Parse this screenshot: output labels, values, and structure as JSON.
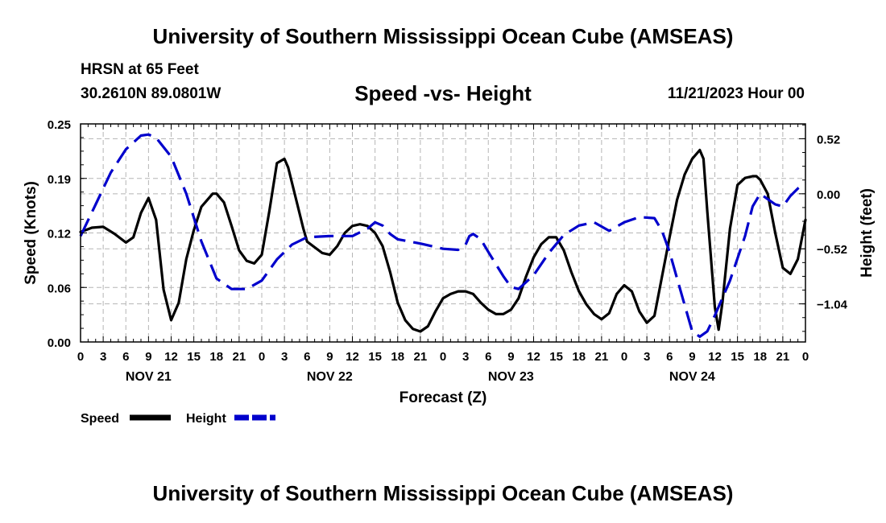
{
  "header": {
    "title": "University of Southern Mississippi Ocean Cube (AMSEAS)",
    "station": "HRSN at 65 Feet",
    "coords": "30.2610N  89.0801W",
    "run_time": "11/21/2023 Hour 00",
    "footer_title": "University of Southern Mississippi Ocean Cube (AMSEAS)"
  },
  "chart_data": {
    "type": "line",
    "title": "Speed -vs- Height",
    "xlabel": "Forecast (Z)",
    "ylabel": "Speed (Knots)",
    "y2label": "Height (feet)",
    "grid": true,
    "x_range_hours": [
      0,
      96
    ],
    "ylim": [
      0,
      0.25
    ],
    "y2lim": [
      -1.4,
      0.66
    ],
    "x_tick_labels": [
      "0",
      "3",
      "6",
      "9",
      "12",
      "15",
      "18",
      "21",
      "0",
      "3",
      "6",
      "9",
      "12",
      "15",
      "18",
      "21",
      "0",
      "3",
      "6",
      "9",
      "12",
      "15",
      "18",
      "21",
      "0",
      "3",
      "6",
      "9",
      "12",
      "15",
      "18",
      "21",
      "0"
    ],
    "day_labels": [
      {
        "label": "NOV 21",
        "hour": 9
      },
      {
        "label": "NOV 22",
        "hour": 33
      },
      {
        "label": "NOV 23",
        "hour": 57
      },
      {
        "label": "NOV 24",
        "hour": 81
      }
    ],
    "y_ticks": [
      "0.00",
      "0.06",
      "0.12",
      "0.19",
      "0.25"
    ],
    "y_tick_values": [
      0,
      0.0625,
      0.125,
      0.1875,
      0.25
    ],
    "y2_ticks": [
      "0.52",
      "0.00",
      "−0.52",
      "−1.04"
    ],
    "y2_tick_values": [
      0.52,
      0.0,
      -0.52,
      -1.04
    ],
    "legend": {
      "position": "bottom-left",
      "entries": [
        "Speed",
        "Height"
      ]
    },
    "series": [
      {
        "name": "Speed",
        "axis": "left",
        "color": "#000000",
        "style": "solid",
        "points": [
          [
            0,
            0.126
          ],
          [
            1.5,
            0.131
          ],
          [
            3,
            0.132
          ],
          [
            4.5,
            0.124
          ],
          [
            6,
            0.114
          ],
          [
            7,
            0.12
          ],
          [
            8,
            0.148
          ],
          [
            9,
            0.165
          ],
          [
            10,
            0.14
          ],
          [
            11,
            0.06
          ],
          [
            12,
            0.025
          ],
          [
            13,
            0.045
          ],
          [
            14,
            0.095
          ],
          [
            15,
            0.128
          ],
          [
            16,
            0.155
          ],
          [
            17.5,
            0.17
          ],
          [
            18,
            0.17
          ],
          [
            19,
            0.16
          ],
          [
            20,
            0.133
          ],
          [
            21,
            0.105
          ],
          [
            22,
            0.093
          ],
          [
            23,
            0.09
          ],
          [
            24,
            0.1
          ],
          [
            25,
            0.15
          ],
          [
            26,
            0.205
          ],
          [
            27,
            0.21
          ],
          [
            27.5,
            0.2
          ],
          [
            28.5,
            0.165
          ],
          [
            29.5,
            0.13
          ],
          [
            30,
            0.115
          ],
          [
            32,
            0.102
          ],
          [
            33,
            0.1
          ],
          [
            34,
            0.11
          ],
          [
            35,
            0.125
          ],
          [
            36,
            0.133
          ],
          [
            37,
            0.135
          ],
          [
            38,
            0.133
          ],
          [
            39,
            0.125
          ],
          [
            40,
            0.11
          ],
          [
            41,
            0.08
          ],
          [
            42,
            0.045
          ],
          [
            43,
            0.025
          ],
          [
            44,
            0.015
          ],
          [
            45,
            0.012
          ],
          [
            46,
            0.018
          ],
          [
            47,
            0.035
          ],
          [
            48,
            0.05
          ],
          [
            49,
            0.055
          ],
          [
            50,
            0.058
          ],
          [
            51,
            0.058
          ],
          [
            52,
            0.055
          ],
          [
            53,
            0.045
          ],
          [
            54,
            0.037
          ],
          [
            55,
            0.032
          ],
          [
            56,
            0.032
          ],
          [
            57,
            0.037
          ],
          [
            58,
            0.05
          ],
          [
            59,
            0.075
          ],
          [
            60,
            0.097
          ],
          [
            61,
            0.112
          ],
          [
            62,
            0.12
          ],
          [
            63,
            0.12
          ],
          [
            64,
            0.105
          ],
          [
            65,
            0.08
          ],
          [
            66,
            0.058
          ],
          [
            67,
            0.043
          ],
          [
            68,
            0.032
          ],
          [
            69,
            0.026
          ],
          [
            70,
            0.033
          ],
          [
            71,
            0.055
          ],
          [
            72,
            0.065
          ],
          [
            73,
            0.058
          ],
          [
            74,
            0.035
          ],
          [
            75,
            0.022
          ],
          [
            76,
            0.03
          ],
          [
            77,
            0.075
          ],
          [
            78,
            0.12
          ],
          [
            79,
            0.163
          ],
          [
            80,
            0.192
          ],
          [
            81,
            0.21
          ],
          [
            82,
            0.22
          ],
          [
            82.5,
            0.21
          ],
          [
            83,
            0.15
          ],
          [
            84,
            0.04
          ],
          [
            84.5,
            0.014
          ],
          [
            85,
            0.045
          ],
          [
            86,
            0.13
          ],
          [
            87,
            0.18
          ],
          [
            88,
            0.188
          ],
          [
            89,
            0.19
          ],
          [
            89.5,
            0.19
          ],
          [
            90,
            0.186
          ],
          [
            91,
            0.17
          ],
          [
            92,
            0.125
          ],
          [
            93,
            0.085
          ],
          [
            94,
            0.078
          ],
          [
            95,
            0.095
          ],
          [
            96,
            0.14
          ]
        ]
      },
      {
        "name": "Height",
        "axis": "right",
        "color": "#0000cc",
        "style": "dashed",
        "points": [
          [
            0,
            -0.4
          ],
          [
            2,
            -0.1
          ],
          [
            4,
            0.2
          ],
          [
            6,
            0.42
          ],
          [
            8,
            0.55
          ],
          [
            9,
            0.56
          ],
          [
            10,
            0.53
          ],
          [
            12,
            0.35
          ],
          [
            14,
            0.0
          ],
          [
            16,
            -0.45
          ],
          [
            18,
            -0.8
          ],
          [
            20,
            -0.9
          ],
          [
            22,
            -0.9
          ],
          [
            24,
            -0.82
          ],
          [
            26,
            -0.62
          ],
          [
            28,
            -0.48
          ],
          [
            30,
            -0.41
          ],
          [
            33,
            -0.4
          ],
          [
            36,
            -0.4
          ],
          [
            38,
            -0.33
          ],
          [
            39,
            -0.27
          ],
          [
            40,
            -0.3
          ],
          [
            41,
            -0.38
          ],
          [
            42,
            -0.43
          ],
          [
            45,
            -0.47
          ],
          [
            48,
            -0.52
          ],
          [
            50,
            -0.53
          ],
          [
            51,
            -0.48
          ],
          [
            51.5,
            -0.4
          ],
          [
            52,
            -0.38
          ],
          [
            53,
            -0.43
          ],
          [
            54,
            -0.55
          ],
          [
            56,
            -0.78
          ],
          [
            57,
            -0.88
          ],
          [
            58,
            -0.9
          ],
          [
            60,
            -0.77
          ],
          [
            62,
            -0.56
          ],
          [
            64,
            -0.39
          ],
          [
            66,
            -0.3
          ],
          [
            68,
            -0.27
          ],
          [
            70,
            -0.35
          ],
          [
            72,
            -0.27
          ],
          [
            74,
            -0.22
          ],
          [
            76,
            -0.23
          ],
          [
            77,
            -0.35
          ],
          [
            78,
            -0.55
          ],
          [
            79,
            -0.8
          ],
          [
            80,
            -1.05
          ],
          [
            81,
            -1.3
          ],
          [
            82,
            -1.35
          ],
          [
            83,
            -1.3
          ],
          [
            84,
            -1.15
          ],
          [
            86,
            -0.82
          ],
          [
            88,
            -0.4
          ],
          [
            89,
            -0.12
          ],
          [
            90,
            0.0
          ],
          [
            91,
            -0.05
          ],
          [
            92,
            -0.1
          ],
          [
            93,
            -0.12
          ],
          [
            94,
            -0.02
          ],
          [
            95,
            0.05
          ],
          [
            96,
            0.1
          ]
        ]
      }
    ]
  }
}
